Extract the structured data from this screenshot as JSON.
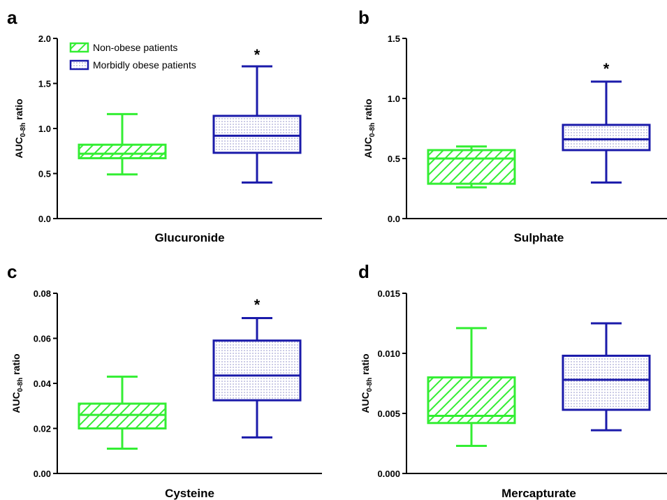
{
  "colors": {
    "non_obese": "#33ee33",
    "morbidly_obese": "#1a1aaa",
    "axis": "#000000"
  },
  "legend": {
    "items": [
      {
        "label": "Non-obese patients",
        "pattern": "diagonal-hatch",
        "color": "#33ee33"
      },
      {
        "label": "Morbidly obese patients",
        "pattern": "dots",
        "color": "#1a1aaa"
      }
    ],
    "placement": "top-left of panel a"
  },
  "ylabel": {
    "main": "AUC",
    "sub": "0-8h",
    "rest": " ratio"
  },
  "chart_data": [
    {
      "panel": "a",
      "type": "box",
      "xlabel": "Glucuronide",
      "ylim": [
        0,
        2.0
      ],
      "yticks": [
        "0.0",
        "0.5",
        "1.0",
        "1.5",
        "2.0"
      ],
      "series": [
        {
          "name": "Non-obese patients",
          "min": 0.49,
          "q1": 0.67,
          "median": 0.72,
          "q3": 0.82,
          "max": 1.16,
          "significant": false
        },
        {
          "name": "Morbidly obese patients",
          "min": 0.4,
          "q1": 0.73,
          "median": 0.92,
          "q3": 1.14,
          "max": 1.69,
          "significant": true
        }
      ],
      "annotation": "*"
    },
    {
      "panel": "b",
      "type": "box",
      "xlabel": "Sulphate",
      "ylim": [
        0,
        1.5
      ],
      "yticks": [
        "0.0",
        "0.5",
        "1.0",
        "1.5"
      ],
      "series": [
        {
          "name": "Non-obese patients",
          "min": 0.26,
          "q1": 0.29,
          "median": 0.5,
          "q3": 0.57,
          "max": 0.6,
          "significant": false
        },
        {
          "name": "Morbidly obese patients",
          "min": 0.3,
          "q1": 0.57,
          "median": 0.66,
          "q3": 0.78,
          "max": 1.14,
          "significant": true
        }
      ],
      "annotation": "*"
    },
    {
      "panel": "c",
      "type": "box",
      "xlabel": "Cysteine",
      "ylim": [
        0,
        0.08
      ],
      "yticks": [
        "0.00",
        "0.02",
        "0.04",
        "0.06",
        "0.08"
      ],
      "series": [
        {
          "name": "Non-obese patients",
          "min": 0.011,
          "q1": 0.02,
          "median": 0.026,
          "q3": 0.031,
          "max": 0.043,
          "significant": false
        },
        {
          "name": "Morbidly obese patients",
          "min": 0.016,
          "q1": 0.0325,
          "median": 0.0435,
          "q3": 0.059,
          "max": 0.069,
          "significant": true
        }
      ],
      "annotation": "*"
    },
    {
      "panel": "d",
      "type": "box",
      "xlabel": "Mercapturate",
      "ylim": [
        0,
        0.015
      ],
      "yticks": [
        "0.000",
        "0.005",
        "0.010",
        "0.015"
      ],
      "series": [
        {
          "name": "Non-obese patients",
          "min": 0.0023,
          "q1": 0.0042,
          "median": 0.0048,
          "q3": 0.008,
          "max": 0.0121,
          "significant": false
        },
        {
          "name": "Morbidly obese patients",
          "min": 0.0036,
          "q1": 0.0053,
          "median": 0.0078,
          "q3": 0.0098,
          "max": 0.0125,
          "significant": true
        }
      ],
      "annotation": ""
    }
  ]
}
